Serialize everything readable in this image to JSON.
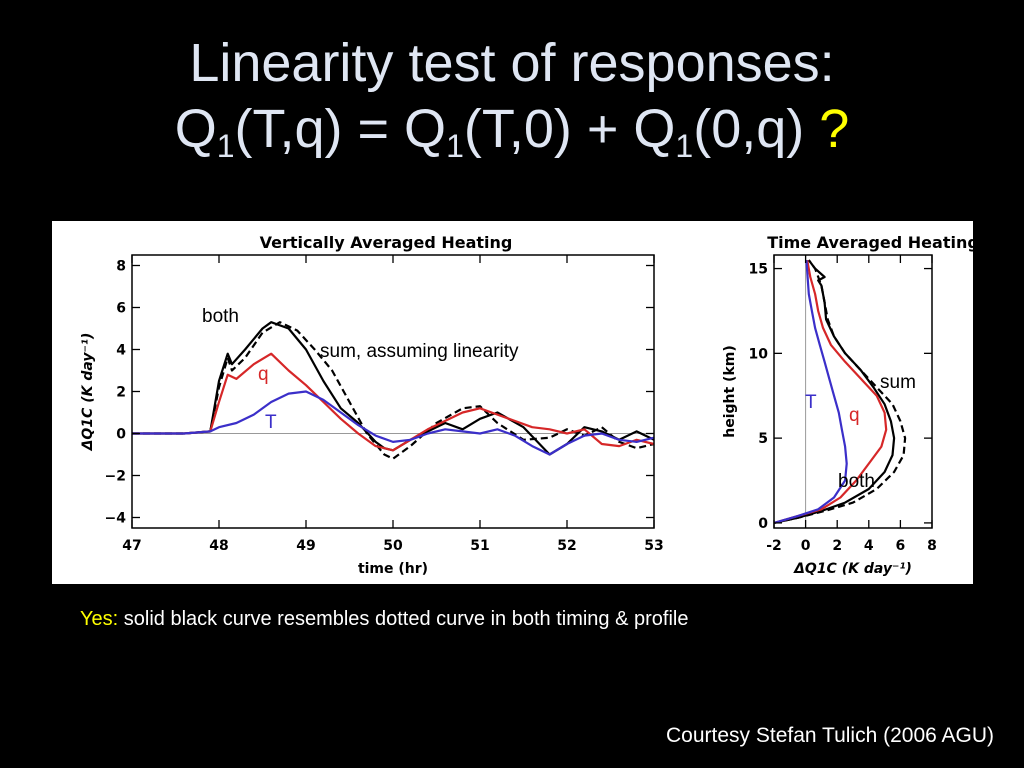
{
  "title": {
    "line1": "Linearity test of responses:",
    "q": "Q",
    "sub1": "1",
    "p1": "(T,q) = ",
    "sub2": "1",
    "p2": "(T,0) + ",
    "sub3": "1",
    "p3": "(0,q) ",
    "question": "?"
  },
  "note": {
    "yes": "Yes",
    "colon": ":",
    "text": " solid black curve resembles dotted curve in both timing & profile"
  },
  "credit": "Courtesy Stefan Tulich (2006 AGU)",
  "colors": {
    "background": "#000000",
    "title": "#dfe6f3",
    "accent_yellow": "#ffff00",
    "both": "#000000",
    "q": "#d62728",
    "T": "#3b2fc9",
    "sum": "#000000"
  },
  "chart_data": [
    {
      "type": "line",
      "title": "Vertically Averaged Heating",
      "xlabel": "time (hr)",
      "ylabel": "ΔQ1C (K day⁻¹)",
      "xlim": [
        47,
        53
      ],
      "ylim": [
        -4.5,
        8.5
      ],
      "xticks": [
        47,
        48,
        49,
        50,
        51,
        52,
        53
      ],
      "yticks": [
        -4,
        -2,
        0,
        2,
        4,
        6,
        8
      ],
      "grid": false,
      "zero_line": true,
      "annotations": [
        {
          "text": "both",
          "color": "#000000"
        },
        {
          "text": "sum, assuming linearity",
          "color": "#000000"
        },
        {
          "text": "q",
          "color": "#d62728"
        },
        {
          "text": "T",
          "color": "#3b2fc9"
        }
      ],
      "series": [
        {
          "id": "both",
          "style": "solid",
          "color": "#000000",
          "x": [
            47.0,
            47.6,
            47.9,
            48.0,
            48.1,
            48.15,
            48.3,
            48.5,
            48.6,
            48.8,
            49.0,
            49.2,
            49.4,
            49.6,
            49.8,
            49.9,
            50.0,
            50.2,
            50.4,
            50.6,
            50.8,
            51.0,
            51.2,
            51.5,
            51.8,
            52.0,
            52.2,
            52.4,
            52.6,
            52.8,
            53.0
          ],
          "y": [
            0,
            0,
            0.1,
            2.5,
            3.8,
            3.3,
            4.0,
            5.0,
            5.3,
            5.0,
            4.0,
            2.5,
            1.2,
            0.5,
            -0.4,
            -0.7,
            -0.8,
            -0.3,
            0.1,
            0.5,
            0.2,
            0.7,
            1.0,
            0.3,
            -1.0,
            -0.5,
            0.3,
            0.1,
            -0.3,
            0.1,
            -0.3
          ]
        },
        {
          "id": "sum",
          "style": "dashed",
          "color": "#000000",
          "x": [
            47.0,
            47.6,
            47.9,
            48.0,
            48.1,
            48.15,
            48.3,
            48.5,
            48.7,
            48.9,
            49.1,
            49.3,
            49.5,
            49.7,
            49.9,
            50.0,
            50.2,
            50.5,
            50.8,
            51.0,
            51.2,
            51.5,
            51.8,
            52.0,
            52.2,
            52.4,
            52.6,
            52.8,
            53.0
          ],
          "y": [
            0,
            0,
            0.1,
            2.2,
            3.6,
            3.0,
            3.6,
            4.8,
            5.3,
            4.9,
            4.0,
            3.0,
            1.5,
            0.0,
            -1.0,
            -1.2,
            -0.6,
            0.5,
            1.2,
            1.3,
            0.5,
            -0.3,
            -0.2,
            0.2,
            -0.1,
            0.3,
            -0.4,
            -0.7,
            -0.5
          ]
        },
        {
          "id": "q",
          "style": "solid",
          "color": "#d62728",
          "x": [
            47.0,
            47.6,
            47.9,
            48.0,
            48.1,
            48.2,
            48.4,
            48.6,
            48.8,
            49.0,
            49.2,
            49.4,
            49.6,
            49.8,
            50.0,
            50.2,
            50.4,
            50.6,
            50.8,
            51.0,
            51.2,
            51.4,
            51.6,
            51.8,
            52.0,
            52.2,
            52.4,
            52.6,
            52.8,
            53.0
          ],
          "y": [
            0,
            0,
            0.1,
            1.5,
            2.8,
            2.6,
            3.3,
            3.8,
            3.0,
            2.3,
            1.5,
            0.7,
            0.0,
            -0.6,
            -0.8,
            -0.3,
            0.2,
            0.6,
            1.0,
            1.2,
            0.9,
            0.6,
            0.3,
            0.2,
            0.0,
            0.2,
            -0.5,
            -0.6,
            -0.3,
            -0.5
          ]
        },
        {
          "id": "T",
          "style": "solid",
          "color": "#3b2fc9",
          "x": [
            47.0,
            47.6,
            47.9,
            48.0,
            48.2,
            48.4,
            48.6,
            48.8,
            49.0,
            49.2,
            49.4,
            49.6,
            49.8,
            50.0,
            50.2,
            50.4,
            50.6,
            50.8,
            51.0,
            51.2,
            51.4,
            51.6,
            51.8,
            52.0,
            52.2,
            52.4,
            52.6,
            52.8,
            53.0
          ],
          "y": [
            0,
            0,
            0.1,
            0.3,
            0.5,
            0.9,
            1.5,
            1.9,
            2.0,
            1.6,
            1.0,
            0.4,
            -0.1,
            -0.4,
            -0.3,
            0.0,
            0.2,
            0.1,
            0.0,
            0.2,
            -0.1,
            -0.6,
            -1.0,
            -0.5,
            -0.1,
            0.0,
            -0.3,
            -0.4,
            -0.2
          ]
        }
      ]
    },
    {
      "type": "line",
      "title": "Time Averaged Heating",
      "xlabel": "ΔQ1C (K day⁻¹)",
      "ylabel": "height (km)",
      "xlim": [
        -2,
        8
      ],
      "ylim": [
        -0.3,
        15.8
      ],
      "xticks": [
        -2,
        0,
        2,
        4,
        6,
        8
      ],
      "yticks": [
        0,
        5,
        10,
        15
      ],
      "grid": false,
      "zero_line": true,
      "annotations": [
        {
          "text": "sum",
          "color": "#000000"
        },
        {
          "text": "T",
          "color": "#3b2fc9"
        },
        {
          "text": "q",
          "color": "#d62728"
        },
        {
          "text": "both",
          "color": "#000000"
        }
      ],
      "series": [
        {
          "id": "both",
          "style": "solid",
          "color": "#000000",
          "x": [
            -2.0,
            -0.5,
            1.0,
            2.5,
            4.0,
            5.0,
            5.5,
            5.6,
            5.4,
            5.0,
            4.3,
            3.5,
            2.5,
            1.8,
            1.3,
            1.2,
            1.0,
            0.8,
            1.2,
            0.6,
            0.2
          ],
          "y": [
            0.0,
            0.3,
            0.7,
            1.2,
            2.0,
            3.0,
            4.0,
            5.0,
            6.0,
            7.0,
            8.0,
            9.0,
            10.0,
            11.0,
            12.0,
            13.0,
            14.0,
            14.3,
            14.5,
            15.0,
            15.5
          ]
        },
        {
          "id": "sum",
          "style": "dashed",
          "color": "#000000",
          "x": [
            -2.0,
            -0.5,
            1.2,
            3.0,
            4.5,
            5.6,
            6.2,
            6.3,
            6.0,
            5.5,
            4.5,
            3.5,
            2.5,
            1.8,
            1.4,
            1.2,
            1.0,
            0.6,
            0.2
          ],
          "y": [
            0.0,
            0.3,
            0.7,
            1.2,
            2.0,
            3.0,
            4.0,
            5.0,
            6.0,
            7.0,
            8.0,
            9.0,
            10.0,
            11.0,
            12.0,
            13.0,
            14.0,
            15.0,
            15.5
          ]
        },
        {
          "id": "q",
          "style": "solid",
          "color": "#d62728",
          "x": [
            -2.0,
            -0.5,
            1.0,
            2.2,
            3.2,
            4.0,
            4.8,
            5.1,
            5.0,
            4.5,
            3.5,
            2.5,
            1.6,
            1.1,
            0.8,
            0.6,
            0.3,
            0.1
          ],
          "y": [
            0.0,
            0.4,
            0.8,
            1.5,
            2.5,
            3.5,
            4.5,
            5.5,
            6.5,
            7.5,
            8.5,
            9.5,
            10.5,
            11.5,
            12.5,
            13.5,
            14.5,
            15.5
          ]
        },
        {
          "id": "T",
          "style": "solid",
          "color": "#3b2fc9",
          "x": [
            -2.0,
            -0.5,
            0.8,
            1.8,
            2.5,
            2.6,
            2.5,
            2.3,
            2.1,
            1.8,
            1.5,
            1.2,
            0.9,
            0.6,
            0.4,
            0.2,
            0.05
          ],
          "y": [
            0.0,
            0.4,
            0.8,
            1.5,
            2.5,
            3.5,
            4.5,
            5.5,
            6.5,
            7.5,
            8.5,
            9.5,
            10.5,
            11.5,
            12.5,
            13.5,
            15.5
          ]
        }
      ]
    }
  ]
}
